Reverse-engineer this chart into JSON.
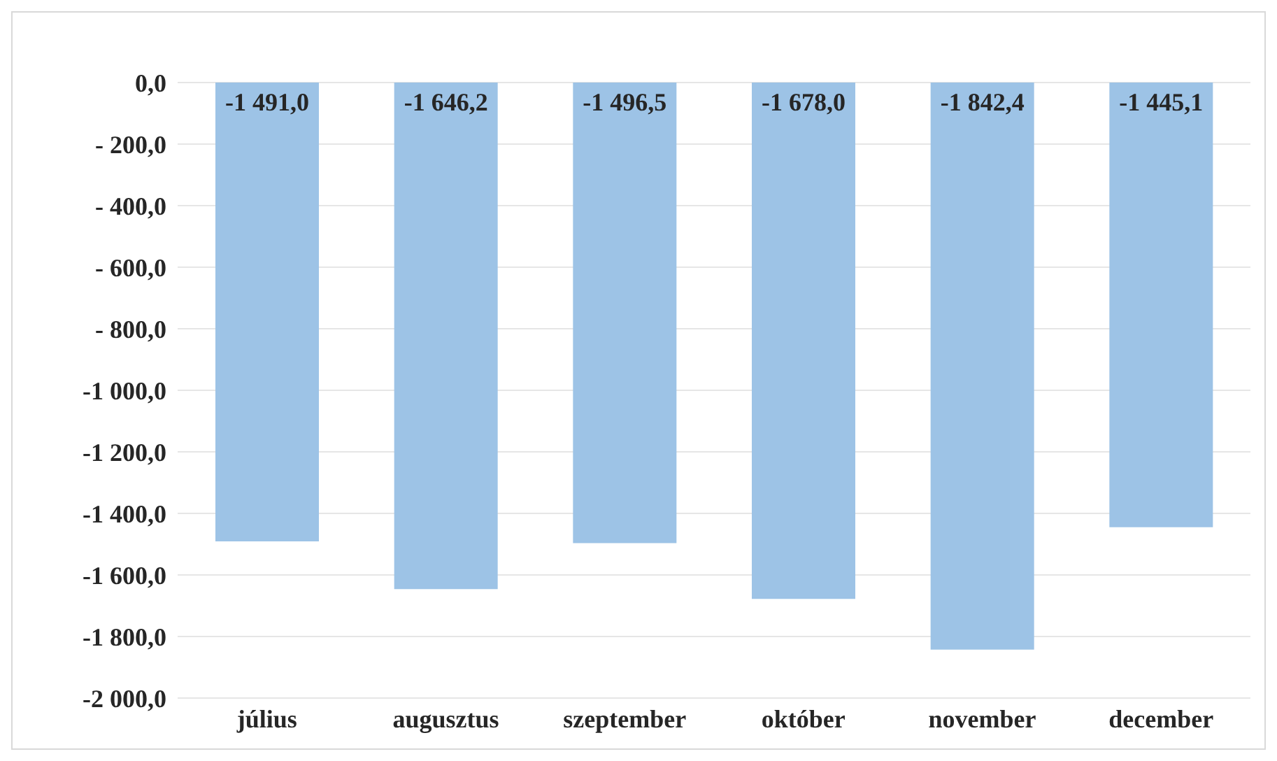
{
  "chart_data": {
    "type": "bar",
    "categories": [
      "július",
      "augusztus",
      "szeptember",
      "október",
      "november",
      "december"
    ],
    "values": [
      -1491.0,
      -1646.2,
      -1496.5,
      -1678.0,
      -1842.4,
      -1445.1
    ],
    "value_labels": [
      "-1 491,0",
      "-1 646,2",
      "-1 496,5",
      "-1 678,0",
      "-1 842,4",
      "-1 445,1"
    ],
    "color": "#9dc3e6",
    "ylim": [
      -2000,
      0
    ],
    "yticks": [
      {
        "value": 0,
        "label": "0,0"
      },
      {
        "value": -200,
        "label": "- 200,0"
      },
      {
        "value": -400,
        "label": "- 400,0"
      },
      {
        "value": -600,
        "label": "- 600,0"
      },
      {
        "value": -800,
        "label": "- 800,0"
      },
      {
        "value": -1000,
        "label": "-1 000,0"
      },
      {
        "value": -1200,
        "label": "-1 200,0"
      },
      {
        "value": -1400,
        "label": "-1 400,0"
      },
      {
        "value": -1600,
        "label": "-1 600,0"
      },
      {
        "value": -1800,
        "label": "-1 800,0"
      },
      {
        "value": -2000,
        "label": "-2 000,0"
      }
    ],
    "grid": "y"
  }
}
